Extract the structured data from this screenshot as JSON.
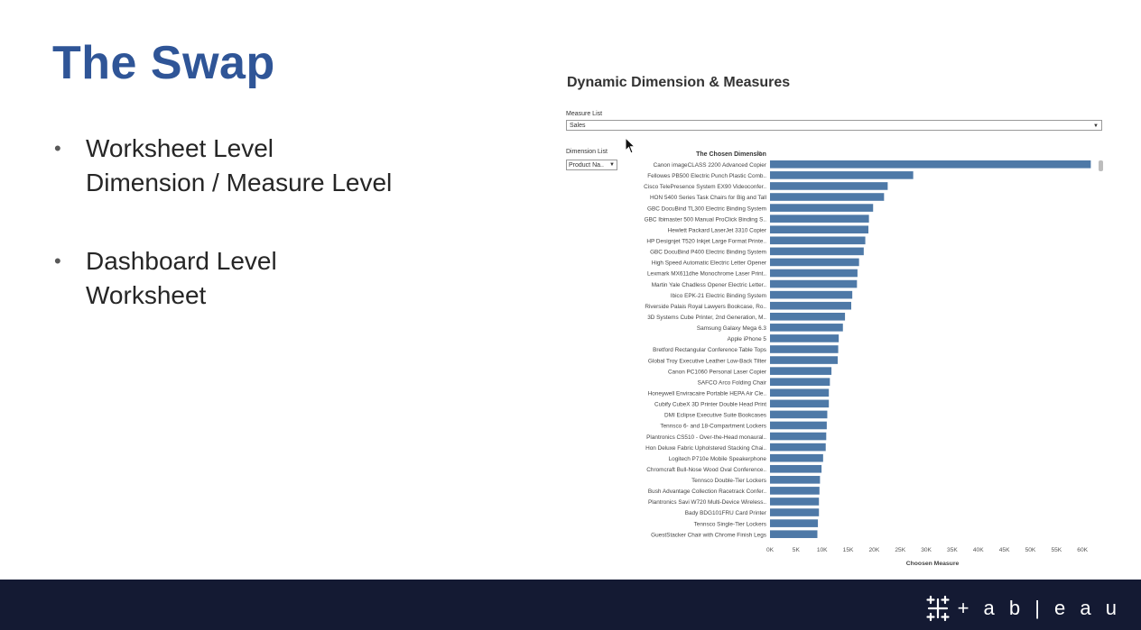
{
  "slide": {
    "title": "The Swap",
    "bullets": [
      {
        "lines": [
          "Worksheet Level",
          "Dimension / Measure Level"
        ]
      },
      {
        "lines": [
          "Dashboard Level",
          "Worksheet"
        ]
      }
    ]
  },
  "dashboard": {
    "title": "Dynamic Dimension & Measures",
    "measure_list": {
      "label": "Measure List",
      "value": "Sales"
    },
    "dimension_list": {
      "label": "Dimension List",
      "value": "Product Na.."
    }
  },
  "footer": {
    "logo_text": "+ a b | e a u"
  },
  "colors": {
    "title": "#2f5597",
    "bar": "#4e79a7",
    "footer": "#141a33"
  },
  "icons": {
    "cursor": "mouse-pointer-icon",
    "logo": "tableau-cross-icon",
    "sort": "sort-icon"
  },
  "chart_data": {
    "type": "bar",
    "orientation": "horizontal",
    "title": "The Chosen Dimension",
    "xlabel": "Choosen Measure",
    "ylabel": "",
    "xlim": [
      0,
      65000
    ],
    "xticks": [
      0,
      5000,
      10000,
      15000,
      20000,
      25000,
      30000,
      35000,
      40000,
      45000,
      50000,
      55000,
      60000
    ],
    "xtick_labels": [
      "0K",
      "5K",
      "10K",
      "15K",
      "20K",
      "25K",
      "30K",
      "35K",
      "40K",
      "45K",
      "50K",
      "55K",
      "60K"
    ],
    "categories": [
      "Canon imageCLASS 2200 Advanced Copier",
      "Fellowes PB500 Electric Punch Plastic Comb..",
      "Cisco TelePresence System EX90 Videoconfer..",
      "HON 5400 Series Task Chairs for Big and Tall",
      "GBC DocuBind TL300 Electric Binding System",
      "GBC Ibimaster 500 Manual ProClick Binding S..",
      "Hewlett Packard LaserJet 3310 Copier",
      "HP Designjet T520 Inkjet Large Format Printe..",
      "GBC DocuBind P400 Electric Binding System",
      "High Speed Automatic Electric Letter Opener",
      "Lexmark MX611dhe Monochrome Laser Print..",
      "Martin Yale Chadless Opener Electric Letter..",
      "Ibico EPK-21 Electric Binding System",
      "Riverside Palais Royal Lawyers Bookcase, Ro..",
      "3D Systems Cube Printer, 2nd Generation, M..",
      "Samsung Galaxy Mega 6.3",
      "Apple iPhone 5",
      "Bretford Rectangular Conference Table Tops",
      "Global Troy Executive Leather Low-Back Tilter",
      "Canon PC1060 Personal Laser Copier",
      "SAFCO Arco Folding Chair",
      "Honeywell Enviracaire Portable HEPA Air Cle..",
      "Cubify CubeX 3D Printer Double Head Print",
      "DMI Eclipse Executive Suite Bookcases",
      "Tennsco 6- and 18-Compartment Lockers",
      "Plantronics CS510 - Over-the-Head monaural..",
      "Hon Deluxe Fabric Upholstered Stacking Chai..",
      "Logitech P710e Mobile Speakerphone",
      "Chromcraft Bull-Nose Wood Oval Conference..",
      "Tennsco Double-Tier Lockers",
      "Bush Advantage Collection Racetrack Confer..",
      "Plantronics Savi W720 Multi-Device Wireless..",
      "Bady BDG101FRU Card Printer",
      "Tennsco Single-Tier Lockers",
      "GuestStacker Chair with Chrome Finish Legs"
    ],
    "values": [
      61600,
      27500,
      22600,
      21900,
      19800,
      19000,
      18900,
      18300,
      18000,
      17100,
      16800,
      16700,
      15800,
      15600,
      14400,
      14000,
      13200,
      13100,
      13000,
      11800,
      11500,
      11300,
      11300,
      11000,
      10900,
      10800,
      10700,
      10200,
      9900,
      9600,
      9500,
      9400,
      9400,
      9200,
      9100
    ]
  }
}
